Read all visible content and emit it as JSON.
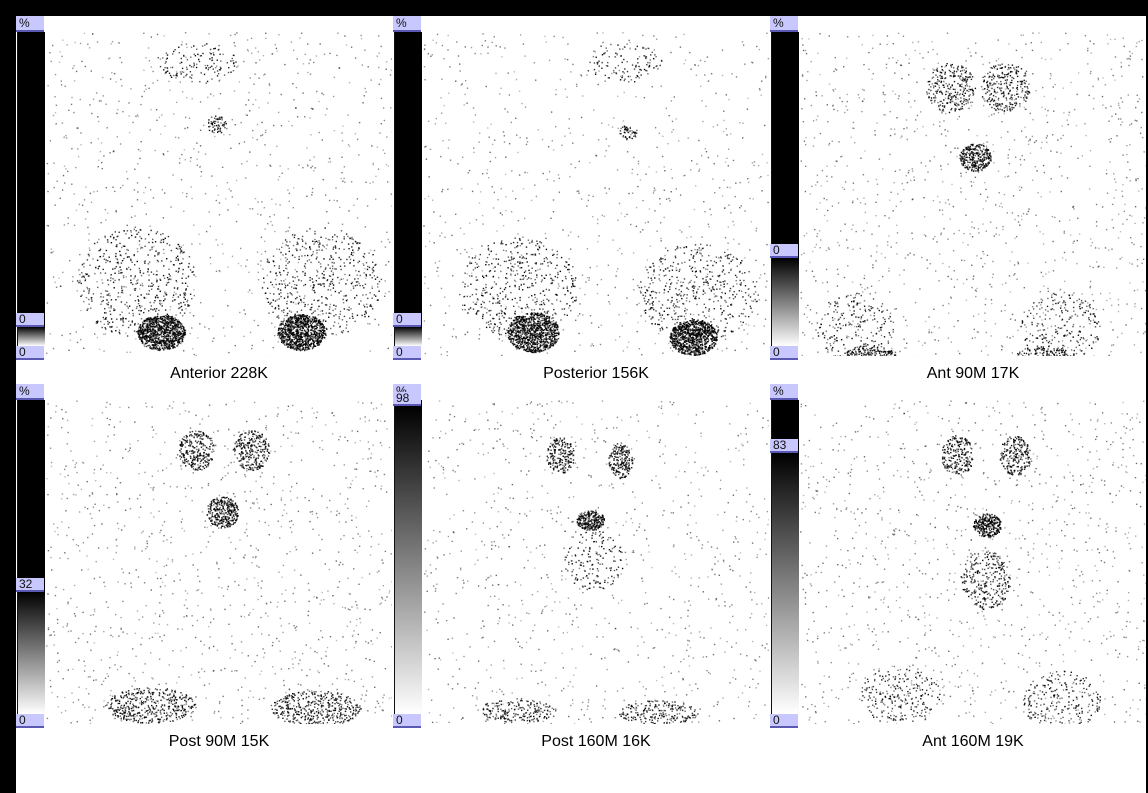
{
  "scale_symbol": "%",
  "panels": [
    {
      "label": "Anterior 228K",
      "scale_max": "0",
      "scale_min": "0",
      "gradient_from": 0.94
    },
    {
      "label": "Posterior 156K",
      "scale_max": "0",
      "scale_min": "0",
      "gradient_from": 0.94
    },
    {
      "label": "Ant 90M 17K",
      "scale_max": "0",
      "scale_min": "0",
      "gradient_from": 0.72
    },
    {
      "label": "Post 90M 15K",
      "scale_max": "32",
      "scale_min": "0",
      "gradient_from": 0.61
    },
    {
      "label": "Post 160M 16K",
      "scale_max": "98",
      "scale_min": "0",
      "gradient_from": 0.02
    },
    {
      "label": "Ant 160M 19K",
      "scale_max": "83",
      "scale_min": "0",
      "gradient_from": 0.17
    }
  ]
}
